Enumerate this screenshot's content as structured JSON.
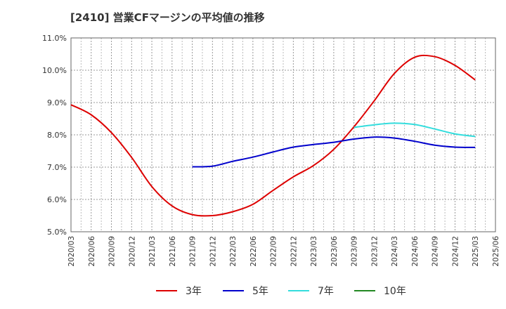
{
  "title": "[2410]  営業CFマージンの平均値の推移",
  "chart_data": {
    "type": "line",
    "title": "[2410]  営業CFマージンの平均値の推移",
    "xlabel": "",
    "ylabel": "",
    "x_ticks": [
      "2020/03",
      "2020/06",
      "2020/09",
      "2020/12",
      "2021/03",
      "2021/06",
      "2021/09",
      "2021/12",
      "2022/03",
      "2022/06",
      "2022/09",
      "2022/12",
      "2023/03",
      "2023/06",
      "2023/09",
      "2023/12",
      "2024/03",
      "2024/06",
      "2024/09",
      "2024/12",
      "2025/03",
      "2025/06"
    ],
    "y_ticks": [
      "5.0%",
      "6.0%",
      "7.0%",
      "8.0%",
      "9.0%",
      "10.0%",
      "11.0%"
    ],
    "ylim": [
      5.0,
      11.0
    ],
    "grid": true,
    "legend_position": "bottom",
    "series": [
      {
        "name": "3年",
        "color": "#dd0000",
        "points": [
          [
            "2020/03",
            8.93
          ],
          [
            "2020/06",
            8.62
          ],
          [
            "2020/09",
            8.07
          ],
          [
            "2020/12",
            7.3
          ],
          [
            "2021/03",
            6.4
          ],
          [
            "2021/06",
            5.8
          ],
          [
            "2021/09",
            5.53
          ],
          [
            "2021/12",
            5.5
          ],
          [
            "2022/03",
            5.62
          ],
          [
            "2022/06",
            5.85
          ],
          [
            "2022/09",
            6.28
          ],
          [
            "2022/12",
            6.7
          ],
          [
            "2023/03",
            7.05
          ],
          [
            "2023/06",
            7.55
          ],
          [
            "2023/09",
            8.25
          ],
          [
            "2023/12",
            9.05
          ],
          [
            "2024/03",
            9.9
          ],
          [
            "2024/06",
            10.4
          ],
          [
            "2024/09",
            10.42
          ],
          [
            "2024/12",
            10.15
          ],
          [
            "2025/03",
            9.7
          ]
        ]
      },
      {
        "name": "5年",
        "color": "#0000cc",
        "points": [
          [
            "2021/09",
            7.01
          ],
          [
            "2021/12",
            7.03
          ],
          [
            "2022/03",
            7.18
          ],
          [
            "2022/06",
            7.31
          ],
          [
            "2022/09",
            7.47
          ],
          [
            "2022/12",
            7.62
          ],
          [
            "2023/03",
            7.7
          ],
          [
            "2023/06",
            7.77
          ],
          [
            "2023/09",
            7.87
          ],
          [
            "2023/12",
            7.93
          ],
          [
            "2024/03",
            7.9
          ],
          [
            "2024/06",
            7.8
          ],
          [
            "2024/09",
            7.68
          ],
          [
            "2024/12",
            7.62
          ],
          [
            "2025/03",
            7.61
          ]
        ]
      },
      {
        "name": "7年",
        "color": "#33dddd",
        "points": [
          [
            "2023/09",
            8.23
          ],
          [
            "2023/12",
            8.31
          ],
          [
            "2024/03",
            8.36
          ],
          [
            "2024/06",
            8.32
          ],
          [
            "2024/09",
            8.18
          ],
          [
            "2024/12",
            8.03
          ],
          [
            "2025/03",
            7.95
          ]
        ]
      },
      {
        "name": "10年",
        "color": "#228822",
        "points": []
      }
    ]
  }
}
